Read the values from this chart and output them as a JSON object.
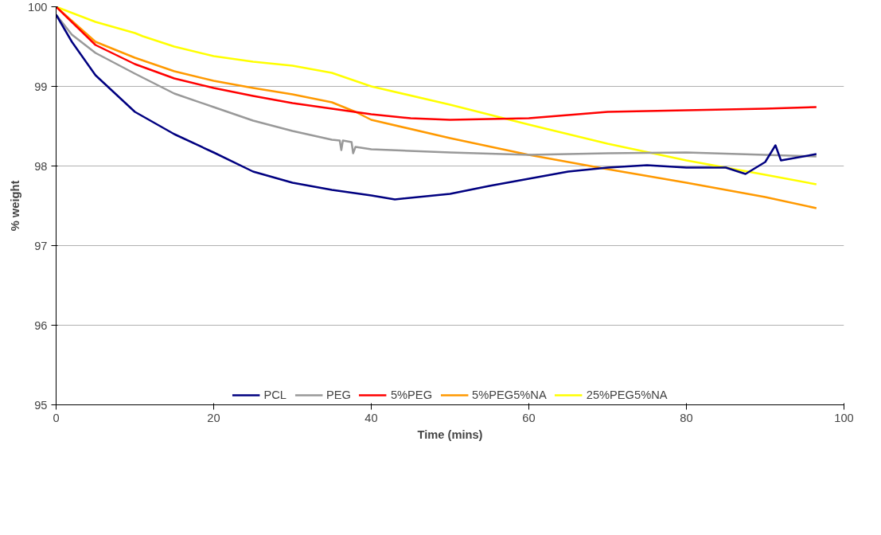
{
  "chart_data": {
    "type": "line",
    "xlabel": "Time (mins)",
    "ylabel": "% weight",
    "xlim": [
      0,
      100
    ],
    "xticks": [
      0,
      20,
      40,
      60,
      80,
      100
    ],
    "ylim": [
      95,
      100
    ],
    "yticks": [
      95,
      96,
      97,
      98,
      99,
      100
    ],
    "grid": "y",
    "legend": "bottom",
    "line_style": "solid",
    "marker": "none",
    "series": [
      {
        "name": "PCL",
        "color": "#000080",
        "x": [
          0,
          2,
          5,
          10,
          15,
          20,
          25,
          30,
          35,
          40,
          43,
          50,
          55,
          60,
          65,
          70,
          75,
          80,
          85,
          87.5,
          90,
          91.3,
          92,
          96.5
        ],
        "values": [
          99.9,
          99.56,
          99.14,
          98.68,
          98.4,
          98.17,
          97.93,
          97.79,
          97.7,
          97.63,
          97.58,
          97.65,
          97.75,
          97.84,
          97.93,
          97.98,
          98.01,
          97.98,
          97.98,
          97.9,
          98.05,
          98.26,
          98.07,
          98.15
        ]
      },
      {
        "name": "PEG",
        "color": "#999999",
        "x": [
          0,
          2,
          5,
          10,
          15,
          20,
          25,
          30,
          35,
          36,
          36.2,
          36.4,
          37.5,
          37.7,
          38,
          40,
          50,
          60,
          70,
          80,
          96.5
        ],
        "values": [
          99.9,
          99.65,
          99.42,
          99.16,
          98.91,
          98.74,
          98.57,
          98.44,
          98.33,
          98.32,
          98.2,
          98.32,
          98.3,
          98.16,
          98.24,
          98.21,
          98.17,
          98.14,
          98.16,
          98.17,
          98.12
        ]
      },
      {
        "name": "5%PEG",
        "color": "#ff0000",
        "x": [
          0,
          5,
          10,
          15,
          20,
          25,
          30,
          35,
          40,
          45,
          50,
          60,
          70,
          80,
          90,
          96.5
        ],
        "values": [
          100,
          99.52,
          99.28,
          99.1,
          98.98,
          98.88,
          98.79,
          98.72,
          98.65,
          98.6,
          98.58,
          98.6,
          98.68,
          98.7,
          98.72,
          98.74
        ]
      },
      {
        "name": "5%PEG5%NA",
        "color": "#ff9900",
        "x": [
          0,
          5,
          10,
          15,
          20,
          25,
          30,
          35,
          38,
          40,
          50,
          60,
          70,
          80,
          90,
          96.5
        ],
        "values": [
          100,
          99.56,
          99.36,
          99.19,
          99.07,
          98.98,
          98.9,
          98.8,
          98.68,
          98.58,
          98.35,
          98.14,
          97.96,
          97.79,
          97.61,
          97.47
        ]
      },
      {
        "name": "25%PEG5%NA",
        "color": "#ffff00",
        "x": [
          0,
          5,
          10,
          11,
          15,
          20,
          25,
          30,
          35,
          40,
          50,
          60,
          70,
          80,
          90,
          96.5
        ],
        "values": [
          100,
          99.81,
          99.67,
          99.63,
          99.5,
          99.38,
          99.31,
          99.26,
          99.17,
          99.0,
          98.77,
          98.52,
          98.28,
          98.07,
          97.89,
          97.77
        ]
      }
    ]
  }
}
